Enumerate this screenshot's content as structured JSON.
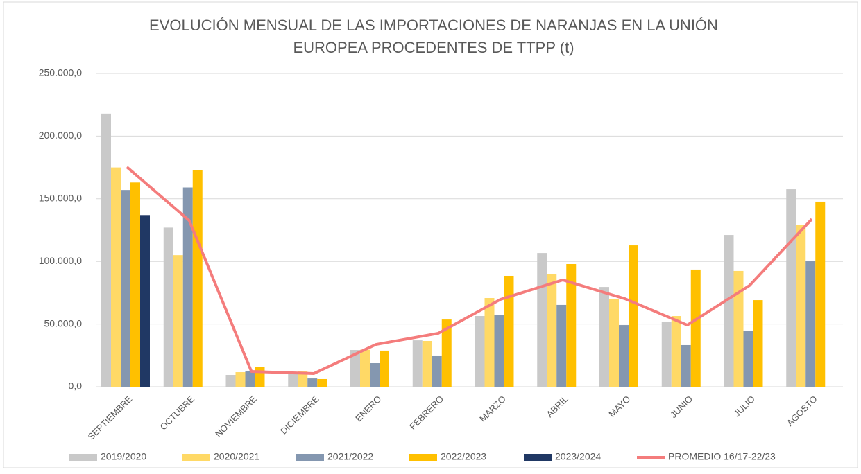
{
  "chart_data": {
    "type": "bar",
    "title": [
      "EVOLUCIÓN MENSUAL DE LAS IMPORTACIONES DE NARANJAS EN LA UNIÓN",
      "EUROPEA PROCEDENTES DE TTPP (t)"
    ],
    "categories": [
      "SEPTIEMBRE",
      "OCTUBRE",
      "NOVIEMBRE",
      "DICIEMBRE",
      "ENERO",
      "FEBRERO",
      "MARZO",
      "ABRIL",
      "MAYO",
      "JUNIO",
      "JULIO",
      "AGOSTO"
    ],
    "series": [
      {
        "name": "2019/2020",
        "type": "bar",
        "color": "#c9c9c9",
        "values": [
          218000,
          127000,
          9400,
          11600,
          29300,
          37000,
          56400,
          106700,
          79600,
          52000,
          121100,
          157600
        ]
      },
      {
        "name": "2020/2021",
        "type": "bar",
        "color": "#ffd966",
        "values": [
          175000,
          105000,
          11600,
          12700,
          29500,
          36500,
          70800,
          90100,
          69700,
          56400,
          92400,
          129000
        ]
      },
      {
        "name": "2021/2022",
        "type": "bar",
        "color": "#8497b0",
        "values": [
          157000,
          159000,
          12700,
          6600,
          18800,
          24900,
          57000,
          65300,
          49200,
          33200,
          44800,
          100100
        ]
      },
      {
        "name": "2022/2023",
        "type": "bar",
        "color": "#ffc000",
        "values": [
          163000,
          173000,
          15500,
          6100,
          28800,
          53600,
          88500,
          97900,
          112800,
          93500,
          69100,
          147700
        ]
      },
      {
        "name": "2023/2024",
        "type": "bar",
        "color": "#203864",
        "values": [
          137000,
          null,
          null,
          null,
          null,
          null,
          null,
          null,
          null,
          null,
          null,
          null
        ]
      },
      {
        "name": "PROMEDIO 16/17-22/23",
        "type": "line",
        "color": "#f47c7c",
        "values": [
          175300,
          132700,
          12200,
          10500,
          33700,
          42600,
          69700,
          85200,
          70200,
          49200,
          80800,
          133800
        ]
      }
    ],
    "ylim": [
      0,
      250000
    ],
    "yticks": [
      {
        "value": 0,
        "label": "0,0"
      },
      {
        "value": 50000,
        "label": "50.000,0"
      },
      {
        "value": 100000,
        "label": "100.000,0"
      },
      {
        "value": 150000,
        "label": "150.000,0"
      },
      {
        "value": 200000,
        "label": "200.000,0"
      },
      {
        "value": 250000,
        "label": "250.000,0"
      }
    ],
    "grid": true,
    "legend": "bottom"
  }
}
